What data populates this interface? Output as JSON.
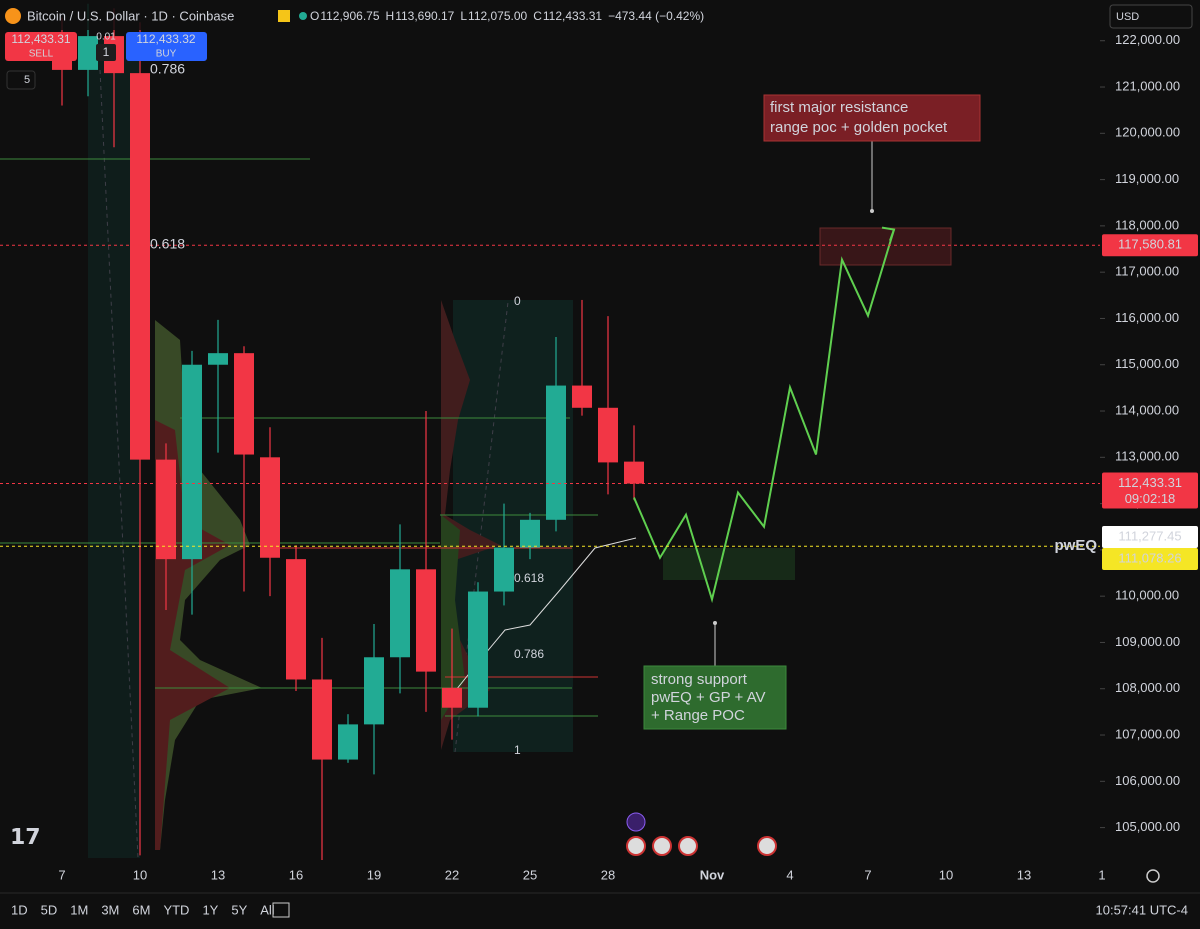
{
  "chart_data": {
    "type": "candlestick",
    "title": "Bitcoin / U.S. Dollar · 1D · Coinbase",
    "categories": [
      null,
      null,
      "7",
      null,
      null,
      "10",
      null,
      null,
      "13",
      null,
      null,
      "16",
      null,
      null,
      "19",
      null,
      null,
      "22",
      null,
      null,
      "25",
      null,
      null,
      "28",
      null,
      null,
      null,
      "Nov",
      null,
      null,
      "4",
      null,
      null,
      "7",
      null,
      null,
      "10",
      null,
      null,
      "13",
      null,
      null,
      "1"
    ],
    "open": [
      null,
      null,
      121600,
      121370,
      122100,
      121300,
      112950,
      110800,
      115000,
      115250,
      113000,
      110800,
      108200,
      106470,
      107230,
      108680,
      110580,
      108020,
      107590,
      110100,
      111050,
      111650,
      114550,
      114070,
      112906.75,
      null,
      null,
      null,
      null,
      null,
      null,
      null,
      null,
      null,
      null,
      null,
      null,
      null,
      null,
      null,
      null,
      null,
      null
    ],
    "high": [
      null,
      null,
      122500,
      122800,
      122700,
      122400,
      113300,
      115300,
      115970,
      115400,
      113650,
      111100,
      109100,
      107450,
      109400,
      111550,
      114000,
      109300,
      110300,
      112000,
      111800,
      115600,
      116400,
      116050,
      113690.17,
      null,
      null,
      null,
      null,
      null,
      null,
      null,
      null,
      null,
      null,
      null,
      null,
      null,
      null,
      null,
      null,
      null,
      null
    ],
    "low": [
      null,
      null,
      120600,
      120800,
      119700,
      104400,
      109700,
      109600,
      113100,
      110100,
      110000,
      107950,
      104300,
      106400,
      106150,
      107900,
      107500,
      106900,
      107400,
      109800,
      110800,
      111400,
      113900,
      112200,
      112075.0,
      null,
      null,
      null,
      null,
      null,
      null,
      null,
      null,
      null,
      null,
      null,
      null,
      null,
      null,
      null,
      null,
      null,
      null
    ],
    "close": [
      null,
      null,
      121370,
      122100,
      121300,
      112950,
      110800,
      115000,
      115250,
      113060,
      110830,
      108200,
      106470,
      107230,
      108680,
      110580,
      108370,
      107590,
      110100,
      111050,
      111650,
      114550,
      114070,
      112890,
      112433.31,
      null,
      null,
      null,
      null,
      null,
      null,
      null,
      null,
      null,
      null,
      null,
      null,
      null,
      null,
      null,
      null,
      null,
      null
    ],
    "up_color": "#22ab94",
    "down_color": "#f23645",
    "projection": {
      "color": "#5fcf4f",
      "values": [
        null,
        null,
        null,
        null,
        null,
        null,
        null,
        null,
        null,
        null,
        null,
        null,
        null,
        null,
        null,
        null,
        null,
        null,
        null,
        null,
        null,
        null,
        null,
        null,
        112130,
        110830,
        111760,
        109930,
        112240,
        111500,
        114510,
        113060,
        117270,
        116060,
        117920,
        null,
        null,
        null,
        null,
        null,
        null,
        null,
        null
      ]
    },
    "ylim": [
      104300,
      122880
    ],
    "yticks": [
      {
        "value": 105000,
        "label": "105,000.00"
      },
      {
        "value": 106000,
        "label": "106,000.00"
      },
      {
        "value": 107000,
        "label": "107,000.00"
      },
      {
        "value": 108000,
        "label": "108,000.00"
      },
      {
        "value": 109000,
        "label": "109,000.00"
      },
      {
        "value": 110000,
        "label": "110,000.00"
      },
      {
        "value": 111000,
        "label": "111,000.00"
      },
      {
        "value": 112000,
        "label": "112,000.00"
      },
      {
        "value": 113000,
        "label": "113,000.00"
      },
      {
        "value": 114000,
        "label": "114,000.00"
      },
      {
        "value": 115000,
        "label": "115,000.00"
      },
      {
        "value": 116000,
        "label": "116,000.00"
      },
      {
        "value": 117000,
        "label": "117,000.00"
      },
      {
        "value": 118000,
        "label": "118,000.00"
      },
      {
        "value": 119000,
        "label": "119,000.00"
      },
      {
        "value": 120000,
        "label": "120,000.00"
      },
      {
        "value": 121000,
        "label": "121,000.00"
      },
      {
        "value": 122000,
        "label": "122,000.00"
      }
    ],
    "price_lines": [
      {
        "value": 117580.81,
        "label": "117,580.81",
        "color": "#f23645",
        "text_color": "#ffffff"
      },
      {
        "value": 112433.31,
        "label": "112,433.31",
        "color": "#f23645",
        "text_color": "#ffffff",
        "countdown": "09:02:18"
      },
      {
        "value": 111277.45,
        "label": "111,277.45",
        "color": "#ffffff",
        "text_color": "#000000",
        "line": false
      },
      {
        "value": 111078.26,
        "label": "111,078.26",
        "color": "#f5e625",
        "text_color": "#000000",
        "title": "pwEQ"
      }
    ],
    "annotations": [
      {
        "lines": [
          "first major resistance",
          "range poc + golden pocket"
        ]
      },
      {
        "lines": [
          "strong support",
          "pwEQ + GP + AV",
          "+ Range POC"
        ]
      }
    ],
    "fib_labels": [
      "0.786",
      "0.618",
      "0",
      "0.618",
      "0.786",
      "1"
    ]
  },
  "header": {
    "ohlc_keys": [
      "O",
      "H",
      "L",
      "C"
    ],
    "ohlc_values": [
      "112,906.75",
      "113,690.17",
      "112,075.00",
      "112,433.31"
    ],
    "change": "−473.44 (−0.42%)"
  },
  "order_panel": {
    "sell_price": "112,433.31",
    "sell": "SELL",
    "step": "0.01",
    "quantity": "1",
    "buy_price": "112,433.32",
    "buy": "BUY",
    "indicators": "5"
  },
  "currency": "USD",
  "toolbar": {
    "ranges": [
      "1D",
      "5D",
      "1M",
      "3M",
      "6M",
      "YTD",
      "1Y",
      "5Y",
      "All"
    ],
    "clock": "10:57:41 UTC-4"
  }
}
